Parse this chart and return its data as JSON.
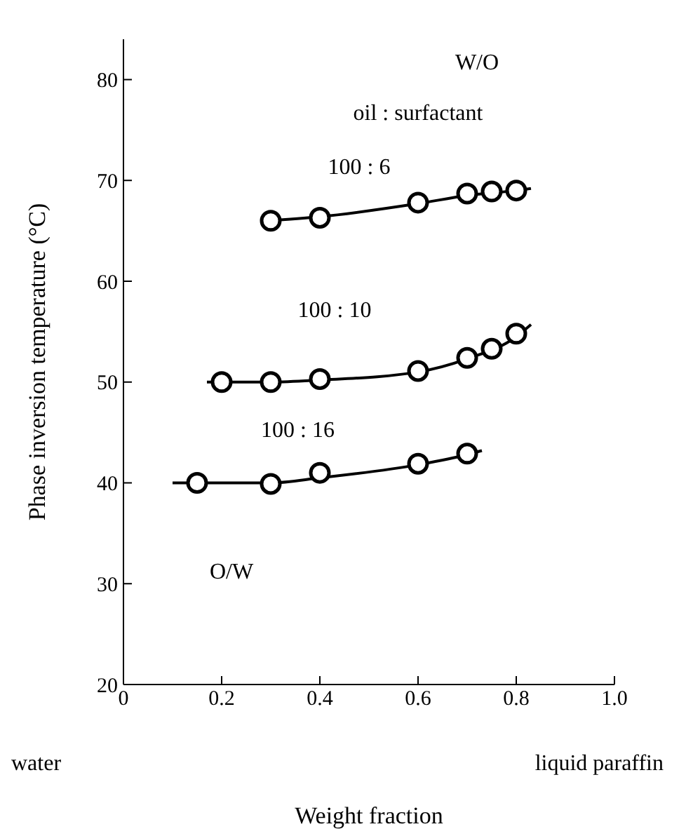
{
  "chart_data": {
    "type": "scatter",
    "xlabel": "Weight fraction",
    "ylabel": "Phase inversion temperature (°C)",
    "xlim": [
      0,
      1
    ],
    "xticks": [
      0,
      0.2,
      0.4,
      0.6,
      0.8,
      {
        "value": 1,
        "label": "1.0"
      }
    ],
    "ylim": [
      20,
      84
    ],
    "yticks": [
      20,
      30,
      40,
      50,
      60,
      70,
      80
    ],
    "marker": "circle",
    "grid": false,
    "legend": false,
    "annotations": [
      "W/O",
      "oil : surfactant",
      "O/W",
      "water",
      "liquid paraffin"
    ],
    "series": [
      {
        "name": "100 : 6",
        "color": "#000000",
        "x": [
          0.3,
          0.4,
          0.6,
          0.7,
          0.75,
          0.8
        ],
        "values": [
          66,
          66.3,
          67.8,
          68.7,
          68.9,
          69
        ]
      },
      {
        "name": "100 : 10",
        "color": "#000000",
        "x": [
          0.2,
          0.3,
          0.4,
          0.6,
          0.7,
          0.75,
          0.8
        ],
        "values": [
          50,
          50,
          50.3,
          51.1,
          52.4,
          53.3,
          54.8
        ]
      },
      {
        "name": "100 : 16",
        "color": "#000000",
        "x": [
          0.15,
          0.3,
          0.4,
          0.6,
          0.7
        ],
        "values": [
          40,
          39.9,
          41,
          41.9,
          42.9
        ]
      },
      {
        "type": "line",
        "marker": "none",
        "color": "#000000",
        "x": [
          0.29,
          0.4,
          0.6,
          0.7,
          0.8,
          0.83
        ],
        "values": [
          66,
          66.4,
          67.7,
          68.5,
          69,
          69.2
        ]
      },
      {
        "type": "line",
        "marker": "none",
        "color": "#000000",
        "x": [
          0.17,
          0.3,
          0.4,
          0.6,
          0.7,
          0.8,
          0.83
        ],
        "values": [
          50,
          50,
          50.2,
          51,
          52.3,
          54.5,
          55.7
        ]
      },
      {
        "type": "line",
        "marker": "none",
        "color": "#000000",
        "x": [
          0.1,
          0.3,
          0.4,
          0.6,
          0.7,
          0.73
        ],
        "values": [
          40,
          40,
          40.5,
          41.8,
          42.8,
          43.2
        ]
      }
    ]
  }
}
